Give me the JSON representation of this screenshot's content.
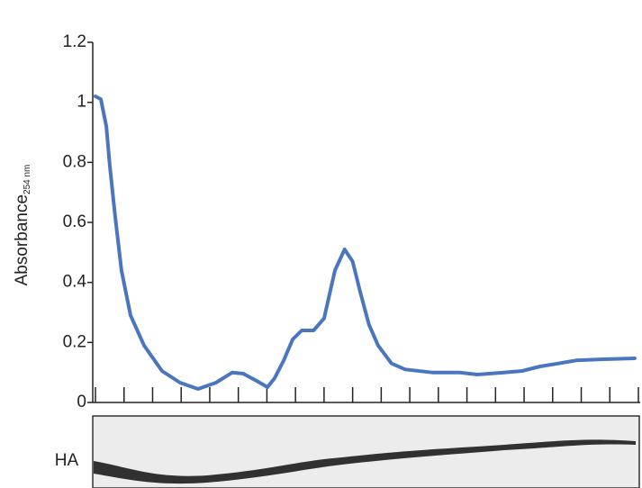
{
  "chart_data": {
    "type": "line",
    "ylabel": "Absorbance",
    "ylabel_subscript": "254 nm",
    "ylim": [
      0,
      1.2
    ],
    "yticks": [
      0,
      0.2,
      0.4,
      0.6,
      0.8,
      1,
      1.2
    ],
    "xlim": [
      0,
      19
    ],
    "xticks": [
      0,
      1,
      2,
      3,
      4,
      5,
      6,
      7,
      8,
      9,
      10,
      11,
      12,
      13,
      14,
      15,
      16,
      17,
      18,
      19
    ],
    "series": [
      {
        "color": "#4a76c0",
        "x": [
          0,
          0.19,
          0.38,
          0.5,
          0.69,
          0.91,
          1.23,
          1.7,
          2.33,
          2.96,
          3.59,
          4.22,
          4.79,
          5.17,
          5.64,
          6.02,
          6.27,
          6.59,
          6.9,
          7.22,
          7.63,
          8.0,
          8.38,
          8.72,
          9.0,
          9.26,
          9.57,
          9.89,
          10.36,
          10.84,
          11.78,
          12.73,
          13.36,
          14.3,
          14.93,
          15.56,
          16.2,
          16.82,
          17.77,
          18.87
        ],
        "values": [
          1.02,
          1.01,
          0.92,
          0.79,
          0.62,
          0.44,
          0.29,
          0.19,
          0.105,
          0.066,
          0.045,
          0.066,
          0.1,
          0.096,
          0.072,
          0.051,
          0.081,
          0.14,
          0.21,
          0.24,
          0.24,
          0.28,
          0.44,
          0.51,
          0.47,
          0.37,
          0.26,
          0.19,
          0.13,
          0.11,
          0.1,
          0.1,
          0.093,
          0.1,
          0.105,
          0.12,
          0.13,
          0.14,
          0.144,
          0.147
        ]
      }
    ],
    "blot_label": "HA"
  }
}
